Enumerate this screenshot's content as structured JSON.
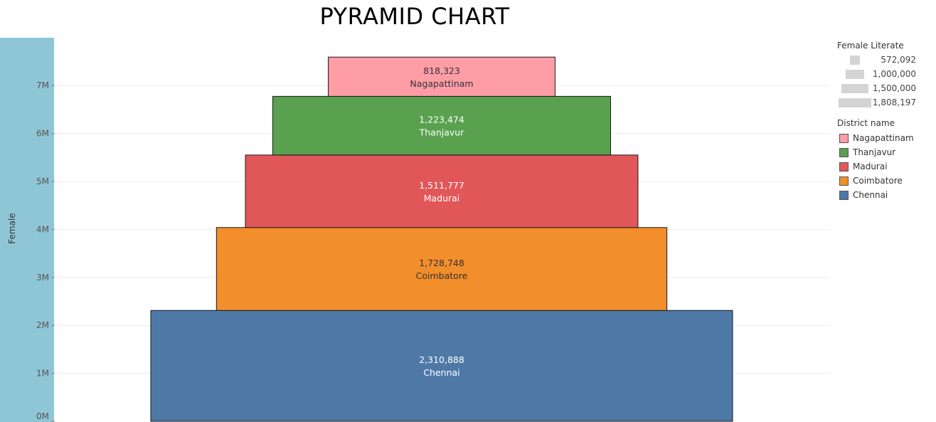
{
  "title": "PYRAMID CHART",
  "chart_data": {
    "type": "bar",
    "subtype": "stacked pyramid",
    "title": "PYRAMID CHART",
    "ylabel": "Female",
    "ylim": [
      0,
      8000000
    ],
    "y_ticks": [
      {
        "value": 0,
        "label": "0M"
      },
      {
        "value": 1000000,
        "label": "1M"
      },
      {
        "value": 2000000,
        "label": "2M"
      },
      {
        "value": 3000000,
        "label": "3M"
      },
      {
        "value": 4000000,
        "label": "4M"
      },
      {
        "value": 5000000,
        "label": "5M"
      },
      {
        "value": 6000000,
        "label": "6M"
      },
      {
        "value": 7000000,
        "label": "7M"
      }
    ],
    "grid": true,
    "size_measure": "Female Literate",
    "color_dimension": "District name",
    "series": [
      {
        "name": "Chennai",
        "female": 2310888,
        "female_literate_label": "2,310,888",
        "female_literate": 1808197,
        "color": "#4e79a7",
        "text_color": "#ffffff"
      },
      {
        "name": "Coimbatore",
        "female": 1728748,
        "female_literate_label": "1,728,748",
        "female_literate": 1400000,
        "color": "#f28e2b",
        "text_color": "#333333"
      },
      {
        "name": "Madurai",
        "female": 1511777,
        "female_literate_label": "1,511,777",
        "female_literate": 1220000,
        "color": "#e15759",
        "text_color": "#ffffff"
      },
      {
        "name": "Thanjavur",
        "female": 1223474,
        "female_literate_label": "1,223,474",
        "female_literate": 1050000,
        "color": "#59a14f",
        "text_color": "#ffffff"
      },
      {
        "name": "Nagapattinam",
        "female": 818323,
        "female_literate_label": "818,323",
        "female_literate": 705000,
        "color": "#ff9da7",
        "text_color": "#333333"
      }
    ],
    "legend_position": "right"
  },
  "legend": {
    "size_title": "Female Literate",
    "size_items": [
      {
        "label": "572,092",
        "value": 572092
      },
      {
        "label": "1,000,000",
        "value": 1000000
      },
      {
        "label": "1,500,000",
        "value": 1500000
      },
      {
        "label": "1,808,197",
        "value": 1808197
      }
    ],
    "color_title": "District name",
    "color_items": [
      {
        "label": "Nagapattinam",
        "color": "#ff9da7"
      },
      {
        "label": "Thanjavur",
        "color": "#59a14f"
      },
      {
        "label": "Madurai",
        "color": "#e15759"
      },
      {
        "label": "Coimbatore",
        "color": "#f28e2b"
      },
      {
        "label": "Chennai",
        "color": "#4e79a7"
      }
    ]
  }
}
